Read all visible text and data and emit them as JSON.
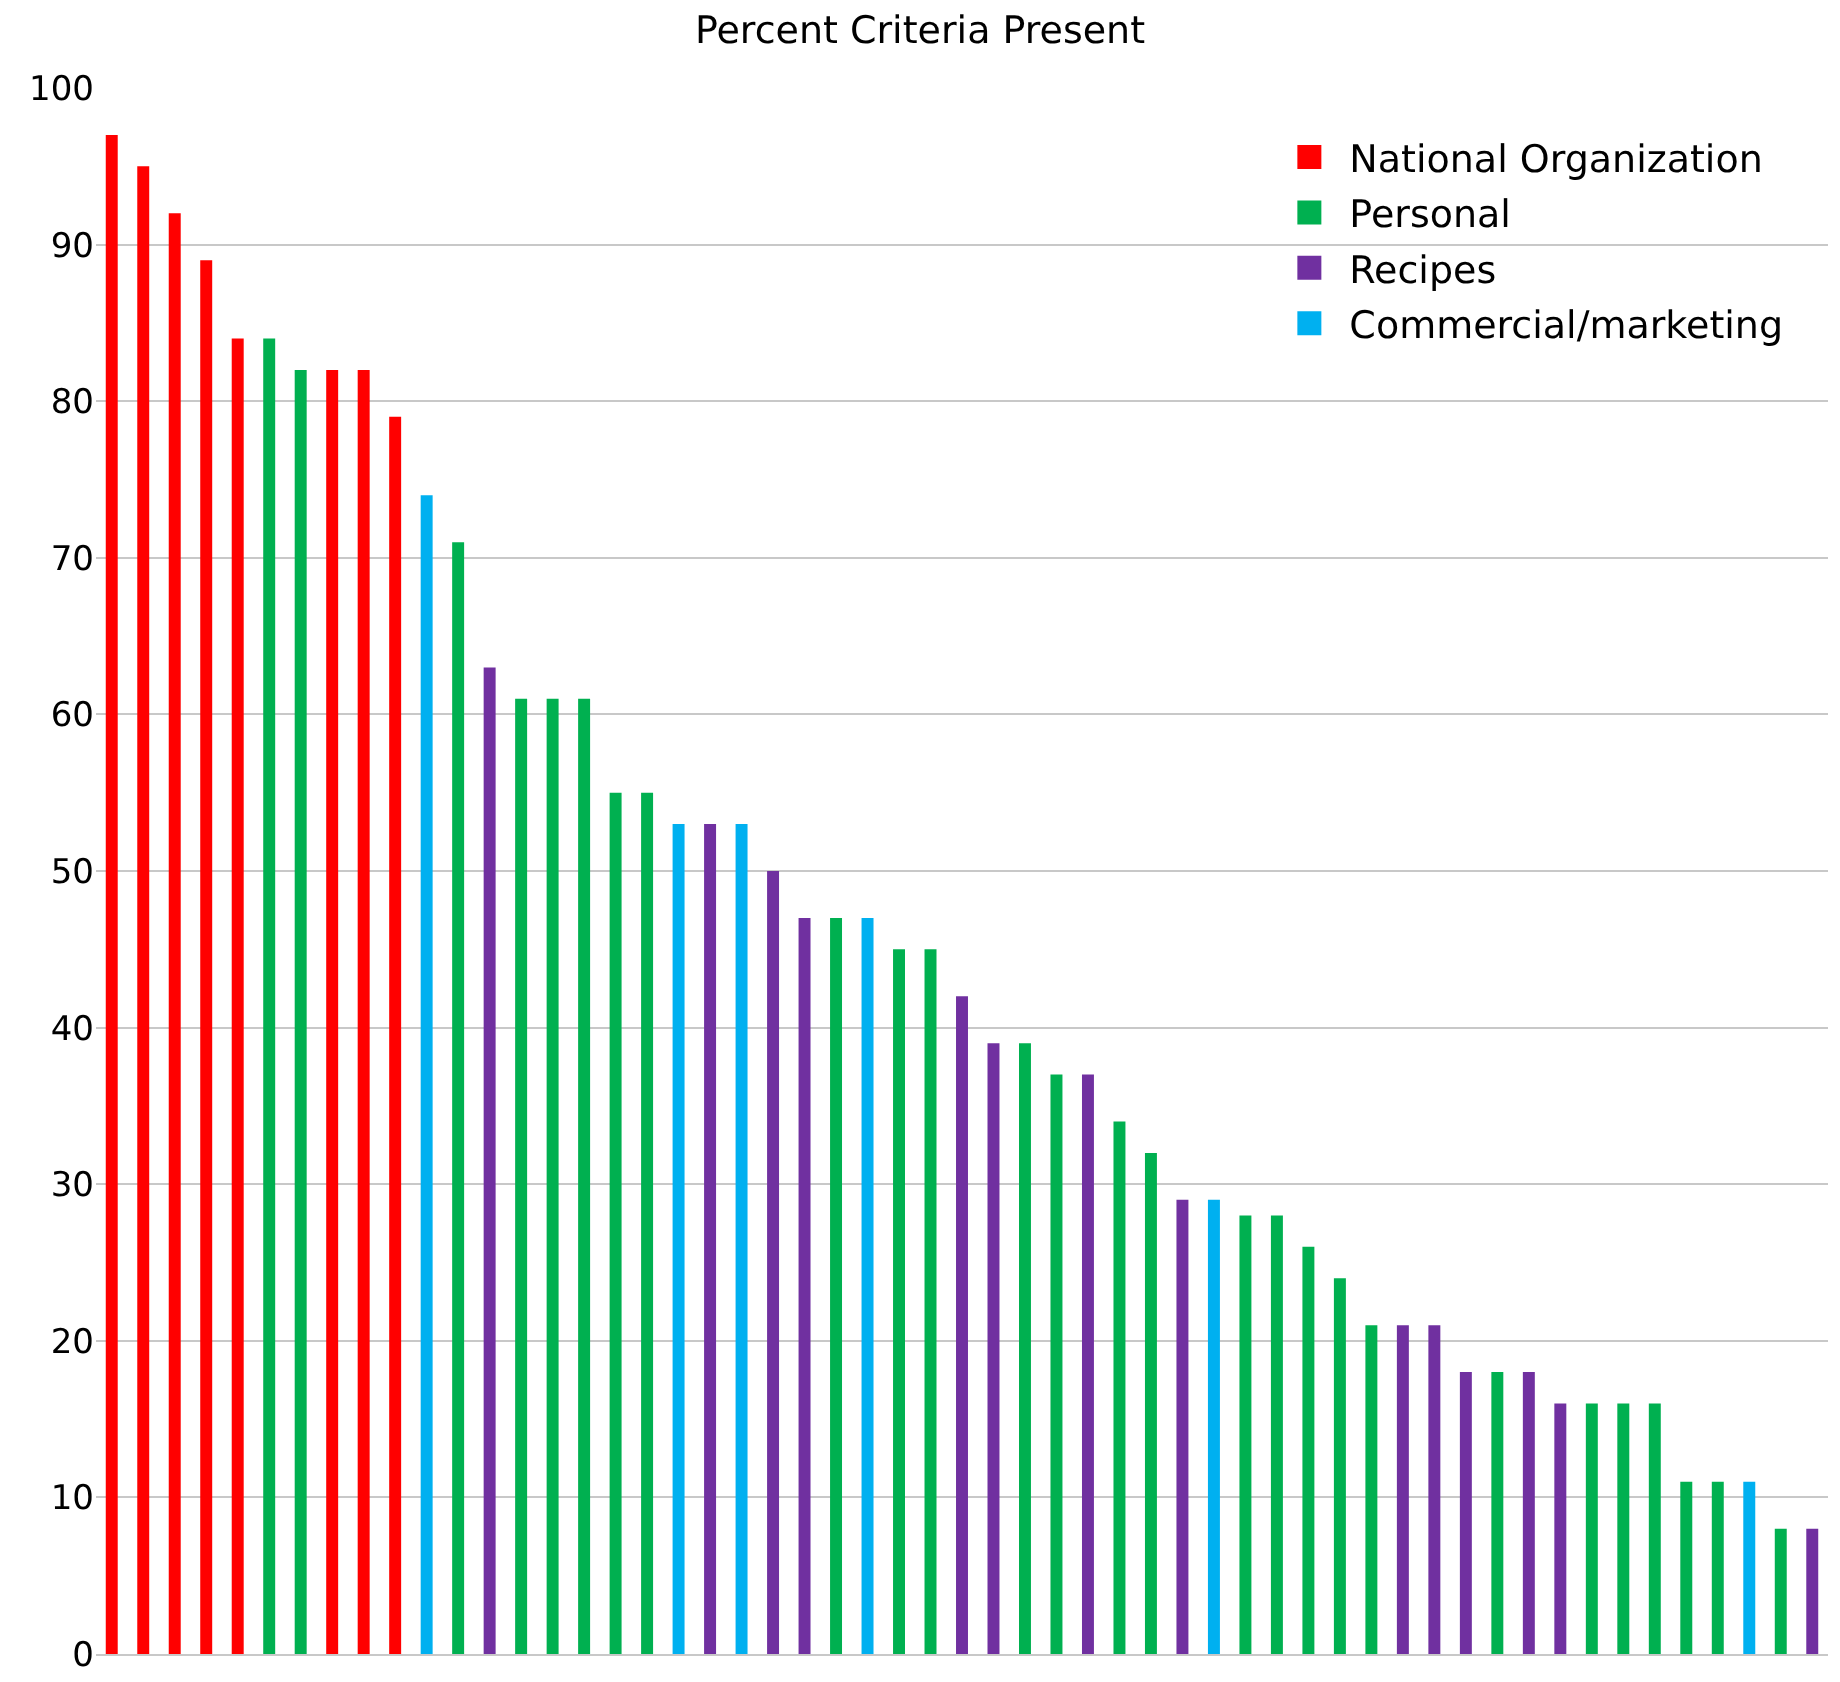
{
  "chart_data": {
    "type": "bar",
    "title": "Percent Criteria Present",
    "categories": [
      null,
      null,
      null,
      null,
      null,
      null,
      null,
      null,
      null,
      null,
      null,
      null,
      null,
      null,
      null,
      null,
      null,
      null,
      null,
      null,
      null,
      null,
      null,
      null,
      null,
      null,
      null,
      null,
      null,
      null,
      null,
      null,
      null,
      null,
      null,
      null,
      null,
      null,
      null,
      null,
      null,
      null,
      null,
      null,
      null,
      null,
      null,
      null,
      null,
      null,
      null,
      null,
      null,
      null,
      null
    ],
    "series": [
      {
        "name": "National Organization",
        "color": "#ff0000",
        "values": [
          97,
          95,
          92,
          89,
          84,
          null,
          null,
          82,
          82,
          79,
          null,
          null,
          null,
          null,
          null,
          null,
          null,
          null,
          null,
          null,
          null,
          null,
          null,
          null,
          null,
          null,
          null,
          null,
          null,
          null,
          null,
          null,
          null,
          null,
          null,
          null,
          null,
          null,
          null,
          null,
          null,
          null,
          null,
          null,
          null,
          null,
          null,
          null,
          null,
          null,
          null,
          null,
          null,
          null,
          null
        ]
      },
      {
        "name": "Personal",
        "color": "#00b050",
        "values": [
          null,
          null,
          null,
          null,
          null,
          84,
          82,
          null,
          null,
          null,
          null,
          71,
          null,
          61,
          61,
          61,
          55,
          55,
          null,
          null,
          null,
          null,
          null,
          47,
          null,
          45,
          45,
          null,
          null,
          39,
          37,
          null,
          34,
          32,
          null,
          null,
          28,
          28,
          26,
          24,
          21,
          null,
          null,
          null,
          18,
          null,
          null,
          16,
          16,
          16,
          11,
          11,
          null,
          8,
          null
        ]
      },
      {
        "name": "Recipes",
        "color": "#7030a0",
        "values": [
          null,
          null,
          null,
          null,
          null,
          null,
          null,
          null,
          null,
          null,
          null,
          null,
          63,
          null,
          null,
          null,
          null,
          null,
          null,
          53,
          null,
          50,
          47,
          null,
          null,
          null,
          null,
          42,
          39,
          null,
          null,
          37,
          null,
          null,
          29,
          null,
          null,
          null,
          null,
          null,
          null,
          21,
          21,
          18,
          null,
          18,
          16,
          null,
          null,
          null,
          null,
          null,
          null,
          null,
          8
        ]
      },
      {
        "name": "Commercial/marketing",
        "color": "#00b0f0",
        "values": [
          null,
          null,
          null,
          null,
          null,
          null,
          null,
          null,
          null,
          null,
          74,
          null,
          null,
          null,
          null,
          null,
          null,
          null,
          53,
          null,
          53,
          null,
          null,
          null,
          47,
          null,
          null,
          null,
          null,
          null,
          null,
          null,
          null,
          null,
          null,
          29,
          null,
          null,
          null,
          null,
          null,
          null,
          null,
          null,
          null,
          null,
          null,
          null,
          null,
          null,
          null,
          null,
          11,
          null,
          null
        ]
      }
    ],
    "ylim": [
      0,
      100
    ],
    "yticks": [
      0,
      10,
      20,
      30,
      40,
      50,
      60,
      70,
      80,
      90,
      100
    ],
    "grid": "y",
    "legend": "top right",
    "tick_labels": "y"
  }
}
